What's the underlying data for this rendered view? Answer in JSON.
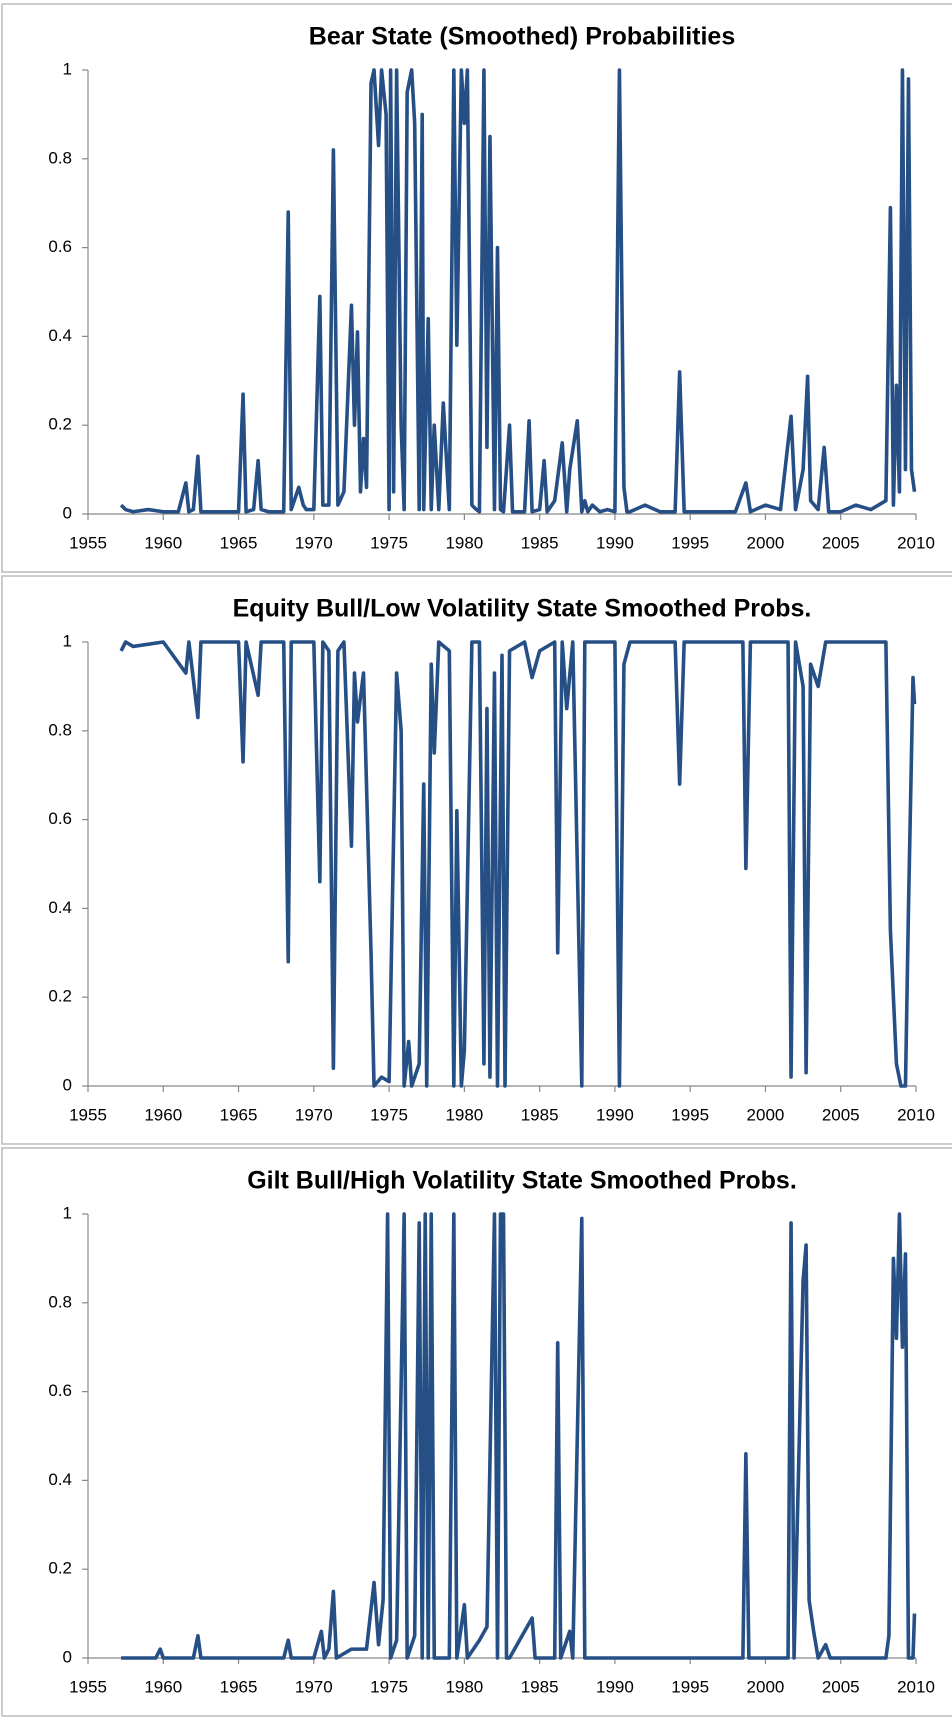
{
  "chart_data": [
    {
      "type": "line",
      "title": "Bear State (Smoothed) Probabilities",
      "xlim": [
        1955,
        2010
      ],
      "xticks": [
        1955,
        1960,
        1965,
        1970,
        1975,
        1980,
        1985,
        1990,
        1995,
        2000,
        2005,
        2010
      ],
      "ylim": [
        0,
        1
      ],
      "yticks": [
        0,
        0.2,
        0.4,
        0.6,
        0.8,
        1
      ],
      "grid": false,
      "x": [
        1957.2,
        1957.5,
        1958,
        1959,
        1960,
        1961,
        1961.5,
        1961.7,
        1962,
        1962.3,
        1962.5,
        1963,
        1964,
        1965,
        1965.3,
        1965.5,
        1966,
        1966.3,
        1966.5,
        1967,
        1968,
        1968.3,
        1968.5,
        1969,
        1969.3,
        1969.5,
        1970,
        1970.4,
        1970.6,
        1971,
        1971.3,
        1971.6,
        1972,
        1972.5,
        1972.7,
        1972.9,
        1973.1,
        1973.3,
        1973.5,
        1973.8,
        1974,
        1974.3,
        1974.5,
        1974.8,
        1975,
        1975.1,
        1975.3,
        1975.5,
        1975.8,
        1976,
        1976.2,
        1976.5,
        1976.7,
        1977,
        1977.2,
        1977.3,
        1977.6,
        1977.8,
        1978,
        1978.3,
        1978.6,
        1979,
        1979.3,
        1979.5,
        1979.8,
        1980,
        1980.2,
        1980.5,
        1980.8,
        1981,
        1981.3,
        1981.5,
        1981.7,
        1982,
        1982.2,
        1982.4,
        1982.6,
        1983,
        1983.2,
        1984,
        1984.3,
        1984.5,
        1985,
        1985.3,
        1985.5,
        1986,
        1986.5,
        1986.8,
        1987,
        1987.5,
        1987.8,
        1988,
        1988.2,
        1988.5,
        1989,
        1989.5,
        1990,
        1990.3,
        1990.6,
        1990.8,
        1991,
        1992,
        1993,
        1994,
        1994.3,
        1994.6,
        1995,
        1998,
        1998.7,
        1999,
        2000,
        2001,
        2001.7,
        2002,
        2002.5,
        2002.8,
        2003,
        2003.5,
        2003.9,
        2004.2,
        2005,
        2006,
        2007,
        2008,
        2008.3,
        2008.5,
        2008.7,
        2008.9,
        2009.1,
        2009.3,
        2009.5,
        2009.7,
        2009.9
      ],
      "series": [
        {
          "color": "#254f85",
          "values": [
            0.02,
            0.01,
            0.005,
            0.01,
            0.005,
            0.005,
            0.07,
            0.005,
            0.01,
            0.13,
            0.005,
            0.005,
            0.005,
            0.005,
            0.27,
            0.005,
            0.01,
            0.12,
            0.01,
            0.005,
            0.005,
            0.68,
            0.01,
            0.06,
            0.02,
            0.01,
            0.01,
            0.49,
            0.02,
            0.02,
            0.82,
            0.02,
            0.05,
            0.47,
            0.2,
            0.41,
            0.05,
            0.17,
            0.06,
            0.97,
            1,
            0.83,
            1,
            0.9,
            0.01,
            1,
            0.05,
            1,
            0.2,
            0.01,
            0.95,
            1,
            0.88,
            0.01,
            0.9,
            0.01,
            0.44,
            0.01,
            0.2,
            0.01,
            0.25,
            0.01,
            1,
            0.38,
            1,
            0.88,
            1,
            0.02,
            0.01,
            0.005,
            1,
            0.15,
            0.85,
            0.01,
            0.6,
            0.01,
            0.005,
            0.2,
            0.005,
            0.005,
            0.21,
            0.005,
            0.01,
            0.12,
            0.005,
            0.03,
            0.16,
            0.005,
            0.1,
            0.21,
            0.005,
            0.03,
            0.005,
            0.02,
            0.005,
            0.01,
            0.005,
            1,
            0.06,
            0.005,
            0.005,
            0.02,
            0.005,
            0.005,
            0.32,
            0.005,
            0.005,
            0.005,
            0.07,
            0.005,
            0.02,
            0.01,
            0.22,
            0.01,
            0.1,
            0.31,
            0.03,
            0.01,
            0.15,
            0.005,
            0.005,
            0.02,
            0.01,
            0.03,
            0.69,
            0.02,
            0.29,
            0.05,
            1,
            0.1,
            0.98,
            0.1,
            0.05
          ]
        }
      ]
    },
    {
      "type": "line",
      "title": "Equity Bull/Low Volatility State Smoothed Probs.",
      "xlim": [
        1955,
        2010
      ],
      "xticks": [
        1955,
        1960,
        1965,
        1970,
        1975,
        1980,
        1985,
        1990,
        1995,
        2000,
        2005,
        2010
      ],
      "ylim": [
        0,
        1
      ],
      "yticks": [
        0,
        0.2,
        0.4,
        0.6,
        0.8,
        1
      ],
      "grid": false,
      "x": [
        1957.2,
        1957.5,
        1958,
        1960,
        1961.5,
        1961.7,
        1962.3,
        1962.5,
        1965,
        1965.3,
        1965.5,
        1966.3,
        1966.5,
        1968,
        1968.3,
        1968.5,
        1970,
        1970.4,
        1970.6,
        1971,
        1971.3,
        1971.6,
        1972,
        1972.5,
        1972.7,
        1972.9,
        1973.3,
        1973.8,
        1974,
        1974.5,
        1975,
        1975.5,
        1975.8,
        1976,
        1976.3,
        1976.5,
        1977,
        1977.3,
        1977.5,
        1977.8,
        1978,
        1978.3,
        1979,
        1979.3,
        1979.5,
        1979.8,
        1980,
        1980.5,
        1981,
        1981.3,
        1981.5,
        1981.7,
        1982,
        1982.2,
        1982.5,
        1982.7,
        1983,
        1984,
        1984.5,
        1985,
        1986,
        1986.2,
        1986.5,
        1986.8,
        1987.2,
        1987.8,
        1988,
        1990,
        1990.3,
        1990.6,
        1991,
        1994,
        1994.3,
        1994.6,
        1998.5,
        1998.7,
        1999,
        2001.5,
        2001.7,
        2002,
        2002.5,
        2002.7,
        2003,
        2003.5,
        2004,
        2008,
        2008.3,
        2008.7,
        2009,
        2009.3,
        2009.5,
        2009.8,
        2009.9
      ],
      "series": [
        {
          "color": "#254f85",
          "values": [
            0.98,
            1,
            0.99,
            1,
            0.93,
            1,
            0.83,
            1,
            1,
            0.73,
            1,
            0.88,
            1,
            1,
            0.28,
            1,
            1,
            0.46,
            1,
            0.98,
            0.04,
            0.98,
            1,
            0.54,
            0.93,
            0.82,
            0.93,
            0.3,
            0,
            0.02,
            0.01,
            0.93,
            0.8,
            0,
            0.1,
            0,
            0.05,
            0.68,
            0,
            0.95,
            0.75,
            1,
            0.98,
            0,
            0.62,
            0,
            0.08,
            1,
            1,
            0.05,
            0.85,
            0.02,
            0.93,
            0,
            0.97,
            0,
            0.98,
            1,
            0.92,
            0.98,
            1,
            0.3,
            1,
            0.85,
            1,
            0,
            1,
            1,
            0,
            0.95,
            1,
            1,
            0.68,
            1,
            1,
            0.49,
            1,
            1,
            0.02,
            1,
            0.9,
            0.03,
            0.95,
            0.9,
            1,
            1,
            0.35,
            0.05,
            0,
            0,
            0.4,
            0.92,
            0.86
          ]
        }
      ]
    },
    {
      "type": "line",
      "title": "Gilt Bull/High Volatility State Smoothed Probs.",
      "xlim": [
        1955,
        2010
      ],
      "xticks": [
        1955,
        1960,
        1965,
        1970,
        1975,
        1980,
        1985,
        1990,
        1995,
        2000,
        2005,
        2010
      ],
      "ylim": [
        0,
        1
      ],
      "yticks": [
        0,
        0.2,
        0.4,
        0.6,
        0.8,
        1
      ],
      "grid": false,
      "x": [
        1957.2,
        1959.5,
        1959.8,
        1960,
        1962,
        1962.3,
        1962.5,
        1968,
        1968.3,
        1968.5,
        1970,
        1970.5,
        1970.7,
        1971,
        1971.3,
        1971.5,
        1972.5,
        1973.5,
        1974,
        1974.3,
        1974.6,
        1974.9,
        1975.1,
        1975.5,
        1976,
        1976.2,
        1976.7,
        1977,
        1977.2,
        1977.4,
        1977.6,
        1977.8,
        1978,
        1979,
        1979.3,
        1979.5,
        1980,
        1980.2,
        1981,
        1981.5,
        1982,
        1982.2,
        1982.4,
        1982.6,
        1982.8,
        1983,
        1984.5,
        1984.7,
        1986,
        1986.2,
        1986.4,
        1987,
        1987.2,
        1987.8,
        1988,
        1990,
        1998.5,
        1998.7,
        1998.9,
        2001.5,
        2001.7,
        2001.9,
        2002.5,
        2002.7,
        2002.9,
        2003.2,
        2003.5,
        2004,
        2004.3,
        2008,
        2008.2,
        2008.5,
        2008.7,
        2008.9,
        2009.1,
        2009.3,
        2009.5,
        2009.8,
        2009.9
      ],
      "series": [
        {
          "color": "#254f85",
          "values": [
            0,
            0,
            0.02,
            0,
            0,
            0.05,
            0,
            0,
            0.04,
            0,
            0,
            0.06,
            0,
            0.02,
            0.15,
            0,
            0.02,
            0.02,
            0.17,
            0.03,
            0.13,
            1,
            0,
            0.04,
            1,
            0,
            0.05,
            0.98,
            0,
            1,
            0,
            1,
            0,
            0,
            1,
            0,
            0.12,
            0,
            0.04,
            0.07,
            1,
            0,
            1,
            1,
            0,
            0,
            0.09,
            0,
            0,
            0.71,
            0,
            0.06,
            0,
            0.99,
            0,
            0,
            0,
            0.46,
            0,
            0,
            0.98,
            0,
            0.85,
            0.93,
            0.13,
            0.06,
            0,
            0.03,
            0,
            0,
            0.05,
            0.9,
            0.72,
            1,
            0.7,
            0.91,
            0,
            0,
            0.1
          ]
        }
      ]
    }
  ]
}
